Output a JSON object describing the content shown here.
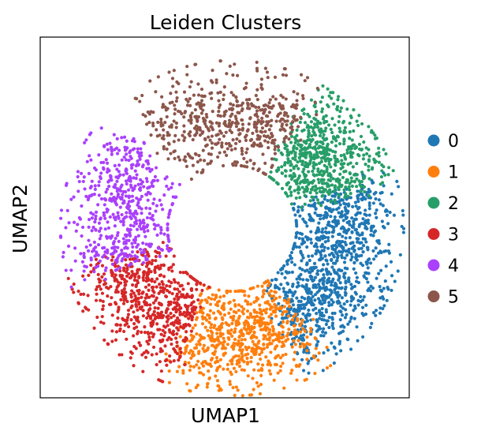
{
  "chart_data": {
    "type": "scatter",
    "title": "Leiden Clusters",
    "xlabel": "UMAP1",
    "ylabel": "UMAP2",
    "xlim": [
      -10,
      10
    ],
    "ylim": [
      -10,
      10
    ],
    "grid": false,
    "legend_position": "right",
    "point_count_approx": 4000,
    "clusters": [
      {
        "name": "0",
        "color": "#1f77b4",
        "angle_range_deg": [
          -62,
          20
        ],
        "center": [
          5.8,
          -2.0
        ],
        "approx_points": 1000
      },
      {
        "name": "1",
        "color": "#ff7f0e",
        "angle_range_deg": [
          -115,
          -55
        ],
        "center": [
          0.4,
          -6.0
        ],
        "approx_points": 700
      },
      {
        "name": "2",
        "color": "#279e68",
        "angle_range_deg": [
          17,
          58
        ],
        "center": [
          5.2,
          3.4
        ],
        "approx_points": 620
      },
      {
        "name": "3",
        "color": "#d62728",
        "angle_range_deg": [
          -165,
          -112
        ],
        "center": [
          -4.8,
          -3.3
        ],
        "approx_points": 620
      },
      {
        "name": "4",
        "color": "#aa40fc",
        "angle_range_deg": [
          140,
          200
        ],
        "center": [
          -6.0,
          2.0
        ],
        "approx_points": 560
      },
      {
        "name": "5",
        "color": "#8c564b",
        "angle_range_deg": [
          58,
          128
        ],
        "center": [
          -0.2,
          6.2
        ],
        "approx_points": 540
      }
    ],
    "ring": {
      "center": [
        0.4,
        -0.6
      ],
      "inner_radius": 3.7,
      "outer_radius": 9.0
    }
  }
}
